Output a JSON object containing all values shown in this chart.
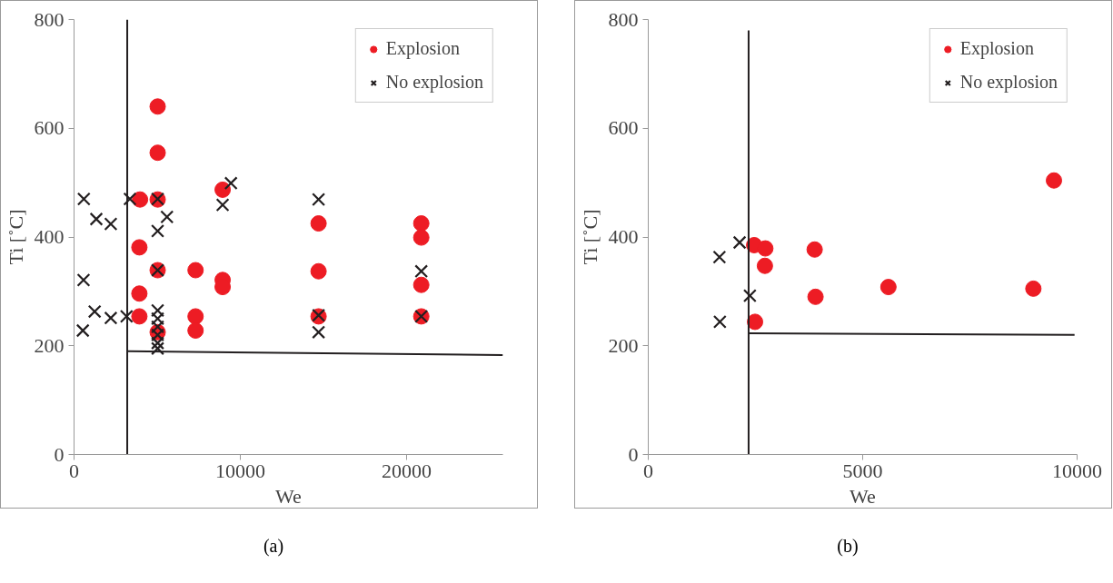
{
  "chart_data": [
    {
      "type": "scatter",
      "xlabel": "We",
      "ylabel": "Ti [˚C]",
      "xlim": [
        0,
        25800
      ],
      "ylim": [
        0,
        800
      ],
      "xticks": [
        0,
        10000,
        20000
      ],
      "yticks": [
        0,
        200,
        400,
        600,
        800
      ],
      "grid": false,
      "legend": "top right",
      "annotations": [
        "(a)"
      ],
      "series": [
        {
          "name": "Explosion",
          "color": "#ed1c24",
          "marker": "circle",
          "x": [
            5030,
            5030,
            3970,
            5030,
            3930,
            3930,
            3930,
            5030,
            7310,
            8940,
            8940,
            8940,
            7310,
            7310,
            5030,
            14710,
            14710,
            14710,
            20890,
            20890,
            20890,
            20890
          ],
          "values": [
            640,
            555,
            469,
            469,
            381,
            296,
            254,
            339,
            339,
            487,
            321,
            308,
            254,
            228,
            225,
            425,
            337,
            254,
            425,
            399,
            312,
            254
          ]
        },
        {
          "name": "No explosion",
          "color": "#231f20",
          "marker": "cross",
          "x": [
            590,
            1340,
            2210,
            3360,
            5030,
            5590,
            5030,
            9440,
            8940,
            570,
            5030,
            1240,
            2210,
            3160,
            530,
            5030,
            5030,
            5030,
            5030,
            5030,
            5030,
            14710,
            14710,
            14710,
            20890,
            20890
          ],
          "values": [
            470,
            433,
            424,
            470,
            470,
            437,
            411,
            499,
            459,
            321,
            339,
            263,
            251,
            254,
            228,
            265,
            250,
            235,
            220,
            205,
            195,
            469,
            256,
            225,
            337,
            254
          ]
        },
        {
          "type": "line",
          "color": "#231f20",
          "x": [
            3200,
            3200
          ],
          "values": [
            0,
            800
          ]
        },
        {
          "type": "line",
          "color": "#231f20",
          "x": [
            3200,
            25800
          ],
          "values": [
            190,
            183
          ]
        }
      ]
    },
    {
      "type": "scatter",
      "xlabel": "We",
      "ylabel": "Ti [˚C]",
      "xlim": [
        0,
        10000
      ],
      "ylim": [
        0,
        800
      ],
      "xticks": [
        0,
        5000,
        10000
      ],
      "yticks": [
        0,
        200,
        400,
        600,
        800
      ],
      "grid": false,
      "legend": "top right",
      "annotations": [
        "(b)"
      ],
      "series": [
        {
          "name": "Explosion",
          "color": "#ed1c24",
          "marker": "circle",
          "x": [
            2470,
            2730,
            2720,
            3880,
            3900,
            5600,
            8980,
            9460,
            2490
          ],
          "values": [
            385,
            379,
            347,
            377,
            290,
            308,
            305,
            504,
            244
          ]
        },
        {
          "name": "No explosion",
          "color": "#231f20",
          "marker": "cross",
          "x": [
            2130,
            1660,
            2370,
            1670
          ],
          "values": [
            390,
            363,
            292,
            244
          ]
        },
        {
          "type": "line",
          "color": "#231f20",
          "x": [
            2340,
            2340
          ],
          "values": [
            0,
            780
          ]
        },
        {
          "type": "line",
          "color": "#231f20",
          "x": [
            2340,
            9940
          ],
          "values": [
            223,
            220
          ]
        }
      ]
    }
  ]
}
